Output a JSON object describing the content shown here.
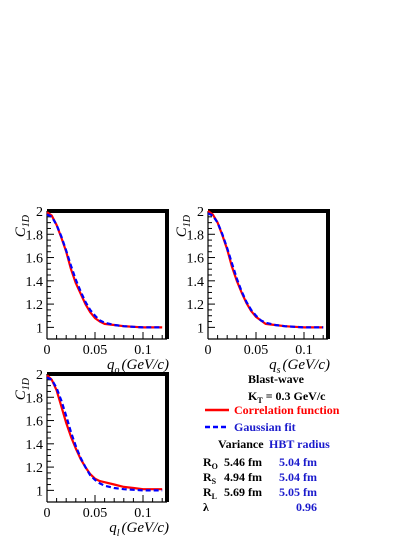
{
  "colors": {
    "correlation": "#ff0000",
    "gaussian": "#0000ff",
    "axis": "#000000",
    "blue_text": "#1a1acc"
  },
  "chart_data": [
    {
      "type": "line",
      "panel": "top-left",
      "ylabel_main": "C",
      "ylabel_sub": "1D",
      "xlabel_main": "q",
      "xlabel_sub": "o",
      "xlabel_units": "(GeV/c)",
      "xlim": [
        0,
        0.125
      ],
      "ylim": [
        0.9,
        2.0
      ],
      "xticks": [
        0,
        0.05,
        0.1
      ],
      "xtick_labels": [
        "0",
        "0.05",
        "0.1"
      ],
      "yticks": [
        1,
        1.2,
        1.4,
        1.6,
        1.8,
        2
      ],
      "ytick_labels": [
        "1",
        "1.2",
        "1.4",
        "1.6",
        "1.8",
        "2"
      ],
      "series": [
        {
          "name": "Correlation function",
          "style": "solid",
          "x": [
            0,
            0.005,
            0.01,
            0.015,
            0.02,
            0.025,
            0.03,
            0.035,
            0.04,
            0.045,
            0.05,
            0.055,
            0.06,
            0.07,
            0.08,
            0.09,
            0.1,
            0.11,
            0.12
          ],
          "y": [
            1.99,
            1.96,
            1.88,
            1.77,
            1.65,
            1.5,
            1.38,
            1.29,
            1.2,
            1.13,
            1.08,
            1.05,
            1.03,
            1.02,
            1.01,
            1.005,
            1.0,
            1.0,
            1.0
          ]
        },
        {
          "name": "Gaussian fit",
          "style": "dashed",
          "x": [
            0,
            0.005,
            0.01,
            0.015,
            0.02,
            0.025,
            0.03,
            0.035,
            0.04,
            0.045,
            0.05,
            0.055,
            0.06,
            0.07,
            0.08,
            0.09,
            0.1,
            0.11,
            0.12
          ],
          "y": [
            1.97,
            1.95,
            1.88,
            1.78,
            1.66,
            1.53,
            1.41,
            1.31,
            1.22,
            1.15,
            1.1,
            1.06,
            1.04,
            1.02,
            1.01,
            1.005,
            1.0,
            1.0,
            1.0
          ]
        }
      ]
    },
    {
      "type": "line",
      "panel": "top-right",
      "ylabel_main": "C",
      "ylabel_sub": "1D",
      "xlabel_main": "q",
      "xlabel_sub": "s",
      "xlabel_units": "(GeV/c)",
      "xlim": [
        0,
        0.125
      ],
      "ylim": [
        0.9,
        2.0
      ],
      "xticks": [
        0,
        0.05,
        0.1
      ],
      "xtick_labels": [
        "0",
        "0.05",
        "0.1"
      ],
      "yticks": [
        1,
        1.2,
        1.4,
        1.6,
        1.8,
        2
      ],
      "ytick_labels": [
        "1",
        "1.2",
        "1.4",
        "1.6",
        "1.8",
        "2"
      ],
      "series": [
        {
          "name": "Correlation function",
          "style": "solid",
          "x": [
            0,
            0.005,
            0.01,
            0.015,
            0.02,
            0.025,
            0.03,
            0.035,
            0.04,
            0.045,
            0.05,
            0.055,
            0.06,
            0.07,
            0.08,
            0.09,
            0.1,
            0.11,
            0.12
          ],
          "y": [
            2.0,
            1.97,
            1.9,
            1.79,
            1.67,
            1.52,
            1.4,
            1.3,
            1.21,
            1.14,
            1.09,
            1.06,
            1.03,
            1.02,
            1.01,
            1.005,
            1.0,
            1.0,
            1.0
          ]
        },
        {
          "name": "Gaussian fit",
          "style": "dashed",
          "x": [
            0,
            0.005,
            0.01,
            0.015,
            0.02,
            0.025,
            0.03,
            0.035,
            0.04,
            0.045,
            0.05,
            0.055,
            0.06,
            0.07,
            0.08,
            0.09,
            0.1,
            0.11,
            0.12
          ],
          "y": [
            1.98,
            1.96,
            1.9,
            1.8,
            1.68,
            1.55,
            1.42,
            1.31,
            1.22,
            1.15,
            1.1,
            1.06,
            1.04,
            1.02,
            1.01,
            1.005,
            1.0,
            1.0,
            1.0
          ]
        }
      ]
    },
    {
      "type": "line",
      "panel": "bottom-left",
      "ylabel_main": "C",
      "ylabel_sub": "1D",
      "xlabel_main": "q",
      "xlabel_sub": "l",
      "xlabel_units": "(GeV/c)",
      "xlim": [
        0,
        0.125
      ],
      "ylim": [
        0.9,
        2.0
      ],
      "xticks": [
        0,
        0.05,
        0.1
      ],
      "xtick_labels": [
        "0",
        "0.05",
        "0.1"
      ],
      "yticks": [
        1,
        1.2,
        1.4,
        1.6,
        1.8,
        2
      ],
      "ytick_labels": [
        "1",
        "1.2",
        "1.4",
        "1.6",
        "1.8",
        "2"
      ],
      "series": [
        {
          "name": "Correlation function",
          "style": "solid",
          "x": [
            0,
            0.005,
            0.01,
            0.015,
            0.02,
            0.025,
            0.03,
            0.035,
            0.04,
            0.045,
            0.05,
            0.055,
            0.06,
            0.07,
            0.08,
            0.09,
            0.1,
            0.11,
            0.12
          ],
          "y": [
            1.99,
            1.95,
            1.86,
            1.72,
            1.58,
            1.46,
            1.36,
            1.27,
            1.2,
            1.14,
            1.1,
            1.08,
            1.07,
            1.05,
            1.03,
            1.02,
            1.01,
            1.01,
            1.01
          ]
        },
        {
          "name": "Gaussian fit",
          "style": "dashed",
          "x": [
            0,
            0.005,
            0.01,
            0.015,
            0.02,
            0.025,
            0.03,
            0.035,
            0.04,
            0.045,
            0.05,
            0.055,
            0.06,
            0.07,
            0.08,
            0.09,
            0.1,
            0.11,
            0.12
          ],
          "y": [
            1.97,
            1.95,
            1.88,
            1.77,
            1.64,
            1.5,
            1.38,
            1.28,
            1.2,
            1.13,
            1.09,
            1.06,
            1.04,
            1.02,
            1.01,
            1.005,
            1.0,
            1.0,
            1.0
          ]
        }
      ]
    }
  ],
  "legend": {
    "model": "Blast-wave",
    "kt_main": "K",
    "kt_sub": "T",
    "kt_value": " = 0.3 GeV/c",
    "correlation_label": "Correlation function",
    "gaussian_label": "Gaussian fit",
    "variance_header": "Variance",
    "hbt_header": "HBT radius",
    "rows": [
      {
        "main": "R",
        "sub": "O",
        "variance": "5.46 fm",
        "hbt": "5.04 fm"
      },
      {
        "main": "R",
        "sub": "S",
        "variance": "4.94 fm",
        "hbt": "5.04 fm"
      },
      {
        "main": "R",
        "sub": "L",
        "variance": "5.69 fm",
        "hbt": "5.05 fm"
      },
      {
        "main": "λ",
        "sub": "",
        "variance": "",
        "hbt": "0.96"
      }
    ]
  }
}
